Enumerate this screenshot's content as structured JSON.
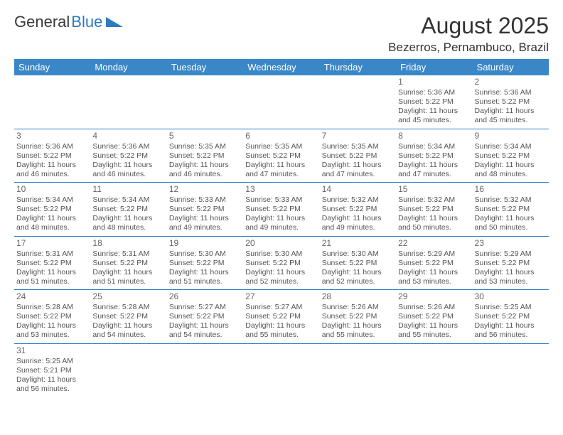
{
  "logo": {
    "text1": "General",
    "text2": "Blue"
  },
  "title": "August 2025",
  "location": "Bezerros, Pernambuco, Brazil",
  "colors": {
    "header_bg": "#3a87c8",
    "header_text": "#ffffff",
    "accent": "#2c7ac0",
    "body_text": "#555555",
    "title_text": "#333333"
  },
  "dayHeaders": [
    "Sunday",
    "Monday",
    "Tuesday",
    "Wednesday",
    "Thursday",
    "Friday",
    "Saturday"
  ],
  "weeks": [
    [
      null,
      null,
      null,
      null,
      null,
      {
        "n": "1",
        "sr": "5:36 AM",
        "ss": "5:22 PM",
        "dl": "11 hours and 45 minutes."
      },
      {
        "n": "2",
        "sr": "5:36 AM",
        "ss": "5:22 PM",
        "dl": "11 hours and 45 minutes."
      }
    ],
    [
      {
        "n": "3",
        "sr": "5:36 AM",
        "ss": "5:22 PM",
        "dl": "11 hours and 46 minutes."
      },
      {
        "n": "4",
        "sr": "5:36 AM",
        "ss": "5:22 PM",
        "dl": "11 hours and 46 minutes."
      },
      {
        "n": "5",
        "sr": "5:35 AM",
        "ss": "5:22 PM",
        "dl": "11 hours and 46 minutes."
      },
      {
        "n": "6",
        "sr": "5:35 AM",
        "ss": "5:22 PM",
        "dl": "11 hours and 47 minutes."
      },
      {
        "n": "7",
        "sr": "5:35 AM",
        "ss": "5:22 PM",
        "dl": "11 hours and 47 minutes."
      },
      {
        "n": "8",
        "sr": "5:34 AM",
        "ss": "5:22 PM",
        "dl": "11 hours and 47 minutes."
      },
      {
        "n": "9",
        "sr": "5:34 AM",
        "ss": "5:22 PM",
        "dl": "11 hours and 48 minutes."
      }
    ],
    [
      {
        "n": "10",
        "sr": "5:34 AM",
        "ss": "5:22 PM",
        "dl": "11 hours and 48 minutes."
      },
      {
        "n": "11",
        "sr": "5:34 AM",
        "ss": "5:22 PM",
        "dl": "11 hours and 48 minutes."
      },
      {
        "n": "12",
        "sr": "5:33 AM",
        "ss": "5:22 PM",
        "dl": "11 hours and 49 minutes."
      },
      {
        "n": "13",
        "sr": "5:33 AM",
        "ss": "5:22 PM",
        "dl": "11 hours and 49 minutes."
      },
      {
        "n": "14",
        "sr": "5:32 AM",
        "ss": "5:22 PM",
        "dl": "11 hours and 49 minutes."
      },
      {
        "n": "15",
        "sr": "5:32 AM",
        "ss": "5:22 PM",
        "dl": "11 hours and 50 minutes."
      },
      {
        "n": "16",
        "sr": "5:32 AM",
        "ss": "5:22 PM",
        "dl": "11 hours and 50 minutes."
      }
    ],
    [
      {
        "n": "17",
        "sr": "5:31 AM",
        "ss": "5:22 PM",
        "dl": "11 hours and 51 minutes."
      },
      {
        "n": "18",
        "sr": "5:31 AM",
        "ss": "5:22 PM",
        "dl": "11 hours and 51 minutes."
      },
      {
        "n": "19",
        "sr": "5:30 AM",
        "ss": "5:22 PM",
        "dl": "11 hours and 51 minutes."
      },
      {
        "n": "20",
        "sr": "5:30 AM",
        "ss": "5:22 PM",
        "dl": "11 hours and 52 minutes."
      },
      {
        "n": "21",
        "sr": "5:30 AM",
        "ss": "5:22 PM",
        "dl": "11 hours and 52 minutes."
      },
      {
        "n": "22",
        "sr": "5:29 AM",
        "ss": "5:22 PM",
        "dl": "11 hours and 53 minutes."
      },
      {
        "n": "23",
        "sr": "5:29 AM",
        "ss": "5:22 PM",
        "dl": "11 hours and 53 minutes."
      }
    ],
    [
      {
        "n": "24",
        "sr": "5:28 AM",
        "ss": "5:22 PM",
        "dl": "11 hours and 53 minutes."
      },
      {
        "n": "25",
        "sr": "5:28 AM",
        "ss": "5:22 PM",
        "dl": "11 hours and 54 minutes."
      },
      {
        "n": "26",
        "sr": "5:27 AM",
        "ss": "5:22 PM",
        "dl": "11 hours and 54 minutes."
      },
      {
        "n": "27",
        "sr": "5:27 AM",
        "ss": "5:22 PM",
        "dl": "11 hours and 55 minutes."
      },
      {
        "n": "28",
        "sr": "5:26 AM",
        "ss": "5:22 PM",
        "dl": "11 hours and 55 minutes."
      },
      {
        "n": "29",
        "sr": "5:26 AM",
        "ss": "5:22 PM",
        "dl": "11 hours and 55 minutes."
      },
      {
        "n": "30",
        "sr": "5:25 AM",
        "ss": "5:22 PM",
        "dl": "11 hours and 56 minutes."
      }
    ],
    [
      {
        "n": "31",
        "sr": "5:25 AM",
        "ss": "5:21 PM",
        "dl": "11 hours and 56 minutes."
      },
      null,
      null,
      null,
      null,
      null,
      null
    ]
  ],
  "labels": {
    "sunrise": "Sunrise:",
    "sunset": "Sunset:",
    "daylight": "Daylight:"
  }
}
